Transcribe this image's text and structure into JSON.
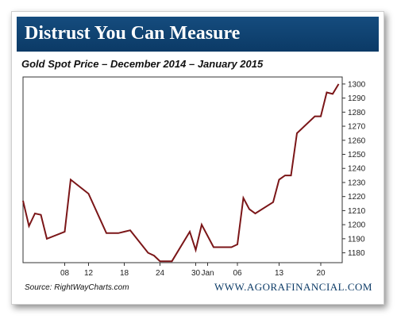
{
  "banner": {
    "title": "Distrust You Can Measure"
  },
  "footer": {
    "source": "Source:  RightWayCharts.com",
    "url": "WWW.AGORAFINANCIAL.COM"
  },
  "colors": {
    "banner": "#0b3a66",
    "line": "#7b1618",
    "footer_url": "#0b3a66"
  },
  "chart_data": {
    "type": "line",
    "title": "Gold Spot Price – December 2014 – January 2015",
    "xlabel": "",
    "ylabel": "",
    "ylim": [
      1173,
      1305
    ],
    "yticks": [
      1180,
      1190,
      1200,
      1210,
      1220,
      1230,
      1240,
      1250,
      1260,
      1270,
      1280,
      1290,
      1300
    ],
    "xticks": [
      {
        "x": "2014-12-08",
        "label": "08"
      },
      {
        "x": "2014-12-12",
        "label": "12"
      },
      {
        "x": "2014-12-18",
        "label": "18"
      },
      {
        "x": "2014-12-24",
        "label": "24"
      },
      {
        "x": "2014-12-30",
        "label": "30"
      },
      {
        "x": "2015-01-01",
        "label": "Jan"
      },
      {
        "x": "2015-01-06",
        "label": "06"
      },
      {
        "x": "2015-01-13",
        "label": "13"
      },
      {
        "x": "2015-01-20",
        "label": "20"
      }
    ],
    "grid": false,
    "legend": "none",
    "series": [
      {
        "x": [
          "2014-12-01",
          "2014-12-02",
          "2014-12-03",
          "2014-12-04",
          "2014-12-05",
          "2014-12-08",
          "2014-12-09",
          "2014-12-12",
          "2014-12-15",
          "2014-12-17",
          "2014-12-18",
          "2014-12-19",
          "2014-12-22",
          "2014-12-23",
          "2014-12-24",
          "2014-12-26",
          "2014-12-29",
          "2014-12-30",
          "2014-12-31",
          "2015-01-02",
          "2015-01-05",
          "2015-01-06",
          "2015-01-07",
          "2015-01-08",
          "2015-01-09",
          "2015-01-12",
          "2015-01-13",
          "2015-01-14",
          "2015-01-15",
          "2015-01-16",
          "2015-01-19",
          "2015-01-20",
          "2015-01-21",
          "2015-01-22",
          "2015-01-23"
        ],
        "values": [
          1217,
          1199,
          1208,
          1207,
          1190,
          1195,
          1232,
          1222,
          1194,
          1194,
          1195,
          1196,
          1180,
          1178,
          1174,
          1174,
          1195,
          1182,
          1200,
          1184,
          1184,
          1186,
          1219,
          1211,
          1208,
          1216,
          1232,
          1235,
          1235,
          1265,
          1277,
          1277,
          1294,
          1293,
          1300
        ]
      }
    ]
  }
}
